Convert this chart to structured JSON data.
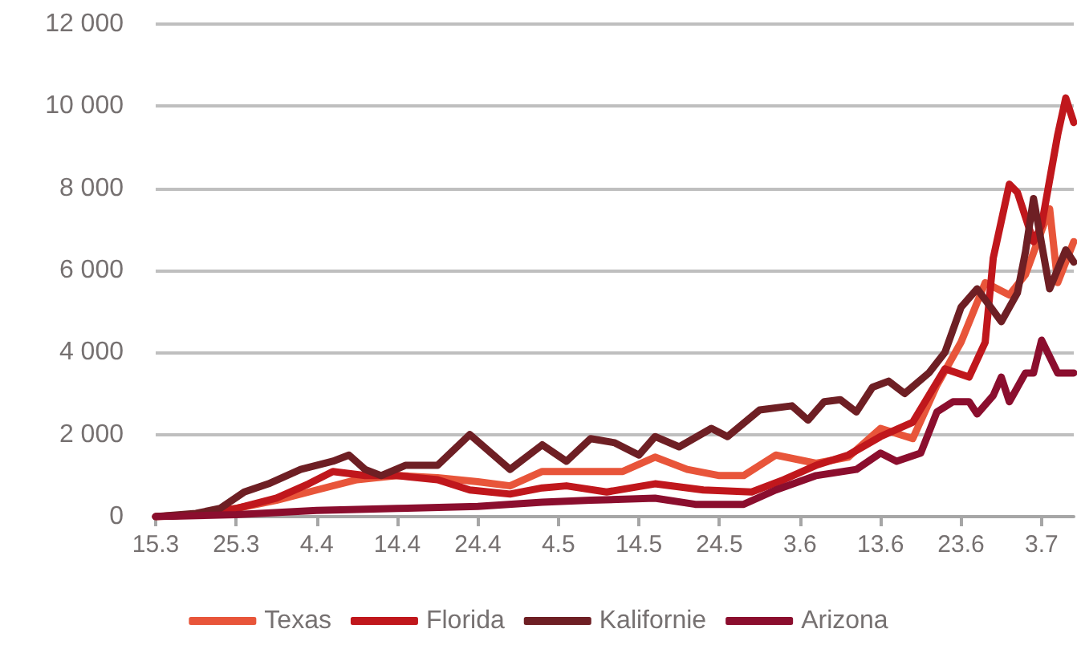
{
  "chart_data": {
    "type": "line",
    "xlim": [
      "--03-15",
      "--07-07"
    ],
    "xticks": [
      {
        "value": "--03-15",
        "label": "15.3"
      },
      {
        "value": "--03-25",
        "label": "25.3"
      },
      {
        "value": "--04-04",
        "label": "4.4"
      },
      {
        "value": "--04-14",
        "label": "14.4"
      },
      {
        "value": "--04-24",
        "label": "24.4"
      },
      {
        "value": "--05-04",
        "label": "4.5"
      },
      {
        "value": "--05-14",
        "label": "14.5"
      },
      {
        "value": "--05-24",
        "label": "24.5"
      },
      {
        "value": "--06-03",
        "label": "3.6"
      },
      {
        "value": "--06-13",
        "label": "13.6"
      },
      {
        "value": "--06-23",
        "label": "23.6"
      },
      {
        "value": "--07-03",
        "label": "3.7"
      }
    ],
    "ylim": [
      0,
      12000
    ],
    "yticks": [
      {
        "value": 0,
        "label": "0"
      },
      {
        "value": 2000,
        "label": "2 000"
      },
      {
        "value": 4000,
        "label": "4 000"
      },
      {
        "value": 6000,
        "label": "6 000"
      },
      {
        "value": 8000,
        "label": "8 000"
      },
      {
        "value": 10000,
        "label": "10 000"
      },
      {
        "value": 12000,
        "label": "12 000"
      }
    ],
    "grid": "y",
    "legend": "bottom",
    "marker": "none",
    "line_style": "solid",
    "series": [
      {
        "name": "Texas",
        "color": "#e8553a",
        "x": [
          "--03-15",
          "--03-20",
          "--03-25",
          "--03-30",
          "--04-04",
          "--04-09",
          "--04-14",
          "--04-19",
          "--04-24",
          "--04-28",
          "--05-02",
          "--05-08",
          "--05-12",
          "--05-16",
          "--05-20",
          "--05-24",
          "--05-27",
          "--05-31",
          "--06-05",
          "--06-09",
          "--06-13",
          "--06-17",
          "--06-20",
          "--06-23",
          "--06-26",
          "--06-29",
          "--07-01",
          "--07-04",
          "--07-05",
          "--07-07"
        ],
        "values": [
          0,
          50,
          200,
          400,
          650,
          900,
          1000,
          950,
          850,
          750,
          1100,
          1100,
          1100,
          1450,
          1150,
          1000,
          1000,
          1500,
          1300,
          1450,
          2150,
          1900,
          3200,
          4250,
          5700,
          5400,
          5900,
          7500,
          5700,
          6700
        ]
      },
      {
        "name": "Florida",
        "color": "#c0171c",
        "x": [
          "--03-15",
          "--03-20",
          "--03-25",
          "--03-30",
          "--04-03",
          "--04-06",
          "--04-10",
          "--04-14",
          "--04-19",
          "--04-23",
          "--04-28",
          "--05-02",
          "--05-05",
          "--05-10",
          "--05-16",
          "--05-22",
          "--05-28",
          "--06-01",
          "--06-05",
          "--06-09",
          "--06-13",
          "--06-17",
          "--06-21",
          "--06-24",
          "--06-26",
          "--06-27",
          "--06-29",
          "--06-30",
          "--07-02",
          "--07-03",
          "--07-05",
          "--07-06",
          "--07-07"
        ],
        "values": [
          0,
          50,
          200,
          450,
          800,
          1100,
          1000,
          1000,
          900,
          650,
          550,
          700,
          750,
          600,
          800,
          650,
          600,
          900,
          1250,
          1500,
          1950,
          2300,
          3600,
          3400,
          4250,
          6300,
          8100,
          7900,
          6700,
          7100,
          9300,
          10200,
          9600
        ]
      },
      {
        "name": "Kalifornie",
        "color": "#6e1f24",
        "x": [
          "--03-15",
          "--03-20",
          "--03-23",
          "--03-26",
          "--03-29",
          "--04-02",
          "--04-06",
          "--04-08",
          "--04-10",
          "--04-12",
          "--04-15",
          "--04-19",
          "--04-23",
          "--04-28",
          "--05-02",
          "--05-05",
          "--05-08",
          "--05-11",
          "--05-14",
          "--05-16",
          "--05-19",
          "--05-23",
          "--05-25",
          "--05-29",
          "--06-02",
          "--06-04",
          "--06-06",
          "--06-08",
          "--06-10",
          "--06-12",
          "--06-14",
          "--06-16",
          "--06-19",
          "--06-21",
          "--06-23",
          "--06-25",
          "--06-28",
          "--06-30",
          "--07-01",
          "--07-02",
          "--07-04",
          "--07-06",
          "--07-07"
        ],
        "values": [
          0,
          80,
          200,
          600,
          800,
          1150,
          1350,
          1500,
          1150,
          1000,
          1250,
          1250,
          2000,
          1150,
          1750,
          1350,
          1900,
          1800,
          1500,
          1950,
          1700,
          2150,
          1950,
          2600,
          2700,
          2350,
          2800,
          2850,
          2550,
          3150,
          3300,
          3000,
          3500,
          4000,
          5100,
          5550,
          4750,
          5450,
          6450,
          7750,
          5550,
          6500,
          6200
        ]
      },
      {
        "name": "Arizona",
        "color": "#8b0e2e",
        "x": [
          "--03-15",
          "--03-25",
          "--04-04",
          "--04-14",
          "--04-24",
          "--05-02",
          "--05-08",
          "--05-16",
          "--05-21",
          "--05-27",
          "--05-31",
          "--06-05",
          "--06-10",
          "--06-13",
          "--06-15",
          "--06-18",
          "--06-20",
          "--06-22",
          "--06-24",
          "--06-25",
          "--06-27",
          "--06-28",
          "--06-29",
          "--07-01",
          "--07-02",
          "--07-03",
          "--07-05",
          "--07-07"
        ],
        "values": [
          0,
          50,
          150,
          200,
          250,
          350,
          400,
          450,
          300,
          300,
          650,
          1000,
          1150,
          1550,
          1350,
          1550,
          2550,
          2800,
          2800,
          2500,
          2950,
          3400,
          2800,
          3500,
          3500,
          4300,
          3500,
          3500
        ]
      }
    ]
  }
}
